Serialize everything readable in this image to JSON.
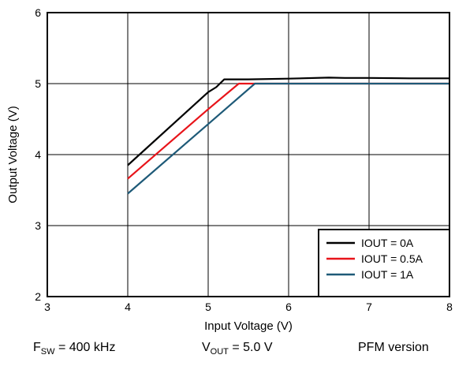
{
  "chart_data": {
    "type": "line",
    "title": "",
    "xlabel": "Input Voltage (V)",
    "ylabel": "Output Voltage (V)",
    "xlim": [
      3,
      8
    ],
    "ylim": [
      2,
      6
    ],
    "x_ticks": [
      "3",
      "4",
      "5",
      "6",
      "7",
      "8"
    ],
    "y_ticks": [
      "2",
      "3",
      "4",
      "5",
      "6"
    ],
    "grid": true,
    "legend_position": "bottom-right",
    "series": [
      {
        "name": "IOUT = 0A",
        "color": "#000000",
        "x": [
          4.0,
          5.0,
          5.1,
          5.2,
          5.5,
          6.0,
          6.5,
          6.7,
          7.0,
          7.5,
          8.0
        ],
        "y": [
          3.85,
          4.88,
          4.95,
          5.06,
          5.06,
          5.07,
          5.085,
          5.08,
          5.08,
          5.075,
          5.075
        ]
      },
      {
        "name": "IOUT = 0.5A",
        "color": "#e8141a",
        "x": [
          4.0,
          5.0,
          5.38,
          5.5,
          6.0,
          6.5,
          7.0,
          7.5,
          8.0
        ],
        "y": [
          3.66,
          4.64,
          5.0,
          5.0,
          5.0,
          5.0,
          5.0,
          5.0,
          5.0
        ]
      },
      {
        "name": "IOUT = 1A",
        "color": "#1e5a78",
        "x": [
          4.0,
          5.0,
          5.58,
          6.0,
          6.5,
          7.0,
          7.5,
          8.0
        ],
        "y": [
          3.45,
          4.43,
          5.0,
          5.0,
          5.0,
          5.0,
          5.0,
          5.0
        ]
      }
    ]
  },
  "footer": {
    "fsw_main": "F",
    "fsw_sub": "SW",
    "fsw_value": " = 400 kHz",
    "vout_main": "V",
    "vout_sub": "OUT",
    "vout_value": " = 5.0 V",
    "version": "PFM version"
  }
}
